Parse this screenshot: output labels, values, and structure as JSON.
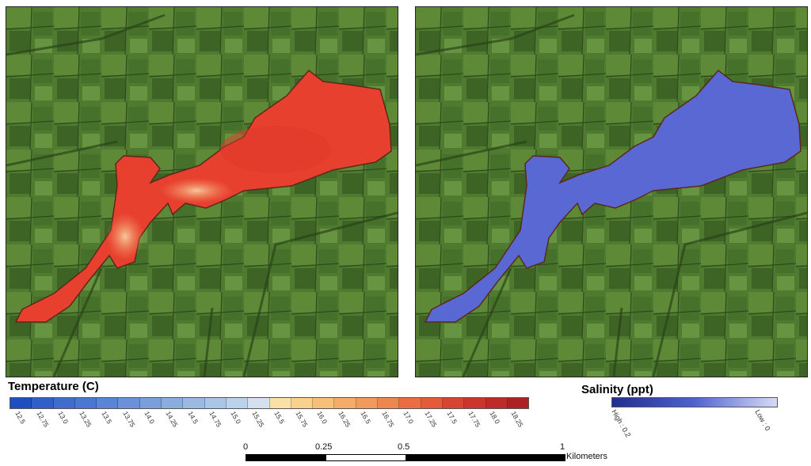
{
  "legend_temperature": {
    "title": "Temperature (C)",
    "ticks": [
      "12.5",
      "12.75",
      "13.0",
      "13.25",
      "13.5",
      "13.75",
      "14.0",
      "14.25",
      "14.5",
      "14.75",
      "15.0",
      "15.25",
      "15.5",
      "15.75",
      "16.0",
      "16.25",
      "16.5",
      "16.75",
      "17.0",
      "17.25",
      "17.5",
      "17.75",
      "18.0",
      "18.25"
    ],
    "colors": [
      "#1d4fc0",
      "#2f5fc7",
      "#3f6ccd",
      "#4a77d2",
      "#5a85d6",
      "#6a91d9",
      "#7b9edd",
      "#8badde",
      "#9cb9e2",
      "#aac6e6",
      "#bcd2ea",
      "#d4e0ee",
      "#fbe0a5",
      "#fad08d",
      "#f8bf78",
      "#f5ac68",
      "#f19a5b",
      "#ee8650",
      "#ea6d44",
      "#e55a3a",
      "#d84432",
      "#cc352c",
      "#bd2a27",
      "#ae2123"
    ]
  },
  "legend_salinity": {
    "title": "Salinity (ppt)",
    "high_label": "High : 0.2",
    "low_label": "Low : 0"
  },
  "scale_bar": {
    "labels": [
      "0",
      "0.25",
      "0.5",
      "1"
    ],
    "unit": "Kilometers"
  },
  "map_colors": {
    "temperature_water": "#e8402f",
    "temperature_warm_patch": "#f5a070",
    "salinity_water": "#5a68d4"
  }
}
